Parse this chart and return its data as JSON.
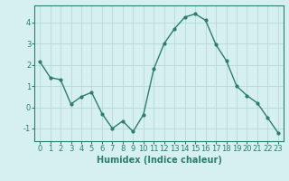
{
  "x": [
    0,
    1,
    2,
    3,
    4,
    5,
    6,
    7,
    8,
    9,
    10,
    11,
    12,
    13,
    14,
    15,
    16,
    17,
    18,
    19,
    20,
    21,
    22,
    23
  ],
  "y": [
    2.15,
    1.4,
    1.3,
    0.15,
    0.5,
    0.7,
    -0.3,
    -1.0,
    -0.65,
    -1.15,
    -0.35,
    1.8,
    3.0,
    3.7,
    4.25,
    4.4,
    4.1,
    2.95,
    2.2,
    1.0,
    0.55,
    0.2,
    -0.5,
    -1.2
  ],
  "line_color": "#2d7d6e",
  "marker": "o",
  "marker_size": 2.0,
  "line_width": 1.0,
  "bg_color": "#d6f0f0",
  "grid_color": "#b8d8d8",
  "xlabel": "Humidex (Indice chaleur)",
  "xlabel_fontsize": 7,
  "tick_fontsize": 6,
  "ylim": [
    -1.6,
    4.8
  ],
  "xlim": [
    -0.5,
    23.5
  ],
  "yticks": [
    -1,
    0,
    1,
    2,
    3,
    4
  ],
  "xticks": [
    0,
    1,
    2,
    3,
    4,
    5,
    6,
    7,
    8,
    9,
    10,
    11,
    12,
    13,
    14,
    15,
    16,
    17,
    18,
    19,
    20,
    21,
    22,
    23
  ]
}
